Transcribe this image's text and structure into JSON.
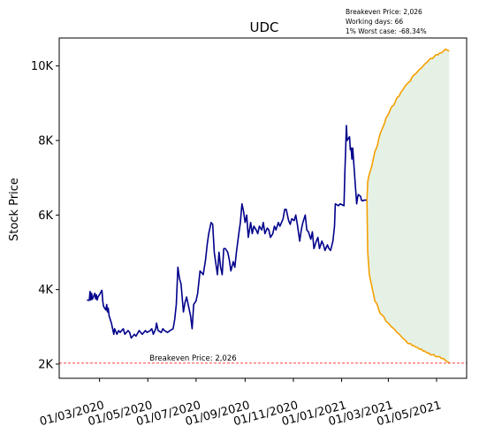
{
  "chart_data": {
    "type": "line",
    "title": "UDC",
    "xlabel": "",
    "ylabel": "Stock Price",
    "info_lines": [
      "Breakeven Price: 2,026",
      "Working days: 66",
      "1% Worst case: -68.34%"
    ],
    "breakeven": {
      "value": 2026,
      "label": "Breakeven Price: 2,026",
      "color": "#ff0000"
    },
    "xlim": [
      "2020-01-10",
      "2021-06-08"
    ],
    "ylim": [
      1620,
      10750
    ],
    "x_ticks": [
      {
        "date": "2020-03-01",
        "label": "01/03/2020"
      },
      {
        "date": "2020-05-01",
        "label": "01/05/2020"
      },
      {
        "date": "2020-07-01",
        "label": "01/07/2020"
      },
      {
        "date": "2020-09-01",
        "label": "01/09/2020"
      },
      {
        "date": "2020-11-01",
        "label": "01/11/2020"
      },
      {
        "date": "2021-01-01",
        "label": "01/01/2021"
      },
      {
        "date": "2021-03-01",
        "label": "01/03/2021"
      },
      {
        "date": "2021-05-01",
        "label": "01/05/2021"
      }
    ],
    "y_ticks": [
      {
        "value": 2000,
        "label": "2K"
      },
      {
        "value": 4000,
        "label": "4K"
      },
      {
        "value": 6000,
        "label": "6K"
      },
      {
        "value": 8000,
        "label": "8K"
      },
      {
        "value": 10000,
        "label": "10K"
      }
    ],
    "grid": false,
    "series": [
      {
        "color": "#00008b",
        "points": [
          [
            "2020-02-14",
            3720
          ],
          [
            "2020-02-17",
            3710
          ],
          [
            "2020-02-18",
            3950
          ],
          [
            "2020-02-19",
            3720
          ],
          [
            "2020-02-20",
            3900
          ],
          [
            "2020-02-21",
            3740
          ],
          [
            "2020-02-24",
            3900
          ],
          [
            "2020-02-25",
            3750
          ],
          [
            "2020-02-26",
            3860
          ],
          [
            "2020-02-27",
            3720
          ],
          [
            "2020-02-28",
            3800
          ],
          [
            "2020-03-02",
            3900
          ],
          [
            "2020-03-03",
            3950
          ],
          [
            "2020-03-04",
            3980
          ],
          [
            "2020-03-05",
            3700
          ],
          [
            "2020-03-06",
            3550
          ],
          [
            "2020-03-09",
            3450
          ],
          [
            "2020-03-10",
            3600
          ],
          [
            "2020-03-11",
            3400
          ],
          [
            "2020-03-12",
            3500
          ],
          [
            "2020-03-13",
            3300
          ],
          [
            "2020-03-16",
            3100
          ],
          [
            "2020-03-17",
            3000
          ],
          [
            "2020-03-18",
            2900
          ],
          [
            "2020-03-19",
            2800
          ],
          [
            "2020-03-20",
            2950
          ],
          [
            "2020-03-23",
            2800
          ],
          [
            "2020-03-25",
            2900
          ],
          [
            "2020-03-27",
            2850
          ],
          [
            "2020-03-31",
            2950
          ],
          [
            "2020-04-02",
            2800
          ],
          [
            "2020-04-06",
            2900
          ],
          [
            "2020-04-08",
            2850
          ],
          [
            "2020-04-10",
            2700
          ],
          [
            "2020-04-14",
            2800
          ],
          [
            "2020-04-16",
            2750
          ],
          [
            "2020-04-20",
            2900
          ],
          [
            "2020-04-22",
            2850
          ],
          [
            "2020-04-24",
            2800
          ],
          [
            "2020-04-28",
            2900
          ],
          [
            "2020-04-30",
            2850
          ],
          [
            "2020-05-04",
            2900
          ],
          [
            "2020-05-06",
            2950
          ],
          [
            "2020-05-08",
            2800
          ],
          [
            "2020-05-11",
            2950
          ],
          [
            "2020-05-12",
            3100
          ],
          [
            "2020-05-14",
            2900
          ],
          [
            "2020-05-18",
            2850
          ],
          [
            "2020-05-20",
            2950
          ],
          [
            "2020-05-22",
            2900
          ],
          [
            "2020-05-26",
            2850
          ],
          [
            "2020-05-29",
            2900
          ],
          [
            "2020-06-02",
            2950
          ],
          [
            "2020-06-04",
            3200
          ],
          [
            "2020-06-06",
            3600
          ],
          [
            "2020-06-08",
            4600
          ],
          [
            "2020-06-10",
            4300
          ],
          [
            "2020-06-12",
            4150
          ],
          [
            "2020-06-15",
            3400
          ],
          [
            "2020-06-17",
            3650
          ],
          [
            "2020-06-19",
            3800
          ],
          [
            "2020-06-22",
            3500
          ],
          [
            "2020-06-24",
            3300
          ],
          [
            "2020-06-26",
            2950
          ],
          [
            "2020-06-28",
            3600
          ],
          [
            "2020-07-01",
            3700
          ],
          [
            "2020-07-03",
            3900
          ],
          [
            "2020-07-06",
            4500
          ],
          [
            "2020-07-08",
            4450
          ],
          [
            "2020-07-10",
            4400
          ],
          [
            "2020-07-13",
            4800
          ],
          [
            "2020-07-15",
            5200
          ],
          [
            "2020-07-17",
            5500
          ],
          [
            "2020-07-20",
            5800
          ],
          [
            "2020-07-22",
            5750
          ],
          [
            "2020-07-24",
            5000
          ],
          [
            "2020-07-26",
            4700
          ],
          [
            "2020-07-28",
            4400
          ],
          [
            "2020-07-30",
            5000
          ],
          [
            "2020-08-01",
            4600
          ],
          [
            "2020-08-03",
            4400
          ],
          [
            "2020-08-05",
            5100
          ],
          [
            "2020-08-07",
            5100
          ],
          [
            "2020-08-10",
            5000
          ],
          [
            "2020-08-12",
            4800
          ],
          [
            "2020-08-14",
            4500
          ],
          [
            "2020-08-17",
            4750
          ],
          [
            "2020-08-19",
            4600
          ],
          [
            "2020-08-21",
            5000
          ],
          [
            "2020-08-24",
            5500
          ],
          [
            "2020-08-26",
            5800
          ],
          [
            "2020-08-28",
            6300
          ],
          [
            "2020-08-30",
            6100
          ],
          [
            "2020-09-01",
            5800
          ],
          [
            "2020-09-03",
            6000
          ],
          [
            "2020-09-05",
            5400
          ],
          [
            "2020-09-08",
            5800
          ],
          [
            "2020-09-10",
            5500
          ],
          [
            "2020-09-12",
            5700
          ],
          [
            "2020-09-15",
            5600
          ],
          [
            "2020-09-17",
            5500
          ],
          [
            "2020-09-19",
            5700
          ],
          [
            "2020-09-22",
            5600
          ],
          [
            "2020-09-24",
            5800
          ],
          [
            "2020-09-26",
            5500
          ],
          [
            "2020-09-29",
            5650
          ],
          [
            "2020-10-01",
            5600
          ],
          [
            "2020-10-03",
            5400
          ],
          [
            "2020-10-06",
            5500
          ],
          [
            "2020-10-08",
            5700
          ],
          [
            "2020-10-10",
            5600
          ],
          [
            "2020-10-13",
            5800
          ],
          [
            "2020-10-15",
            5700
          ],
          [
            "2020-10-17",
            5800
          ],
          [
            "2020-10-19",
            5900
          ],
          [
            "2020-10-21",
            6150
          ],
          [
            "2020-10-23",
            6150
          ],
          [
            "2020-10-26",
            5850
          ],
          [
            "2020-10-28",
            5750
          ],
          [
            "2020-10-30",
            5900
          ],
          [
            "2020-11-02",
            5850
          ],
          [
            "2020-11-04",
            6000
          ],
          [
            "2020-11-06",
            5750
          ],
          [
            "2020-11-09",
            5300
          ],
          [
            "2020-11-11",
            5600
          ],
          [
            "2020-11-13",
            5800
          ],
          [
            "2020-11-16",
            6000
          ],
          [
            "2020-11-18",
            5600
          ],
          [
            "2020-11-20",
            5550
          ],
          [
            "2020-11-23",
            5350
          ],
          [
            "2020-11-25",
            5550
          ],
          [
            "2020-11-27",
            5100
          ],
          [
            "2020-11-30",
            5300
          ],
          [
            "2020-12-02",
            5400
          ],
          [
            "2020-12-04",
            5100
          ],
          [
            "2020-12-07",
            5300
          ],
          [
            "2020-12-09",
            5200
          ],
          [
            "2020-12-11",
            5050
          ],
          [
            "2020-12-14",
            5200
          ],
          [
            "2020-12-16",
            5100
          ],
          [
            "2020-12-18",
            5050
          ],
          [
            "2020-12-21",
            5300
          ],
          [
            "2020-12-23",
            5700
          ],
          [
            "2020-12-24",
            6300
          ],
          [
            "2020-12-28",
            6250
          ],
          [
            "2020-12-30",
            6300
          ],
          [
            "2021-01-04",
            6250
          ],
          [
            "2021-01-05",
            7100
          ],
          [
            "2021-01-06",
            7700
          ],
          [
            "2021-01-07",
            8400
          ],
          [
            "2021-01-08",
            8000
          ],
          [
            "2021-01-11",
            8100
          ],
          [
            "2021-01-12",
            7750
          ],
          [
            "2021-01-13",
            7800
          ],
          [
            "2021-01-14",
            7500
          ],
          [
            "2021-01-15",
            7800
          ],
          [
            "2021-01-18",
            6900
          ],
          [
            "2021-01-19",
            6600
          ],
          [
            "2021-01-20",
            6300
          ],
          [
            "2021-01-21",
            6450
          ],
          [
            "2021-01-22",
            6550
          ],
          [
            "2021-01-25",
            6500
          ],
          [
            "2021-01-26",
            6400
          ],
          [
            "2021-01-28",
            6380
          ],
          [
            "2021-01-29",
            6400
          ],
          [
            "2021-02-01",
            6400
          ],
          [
            "2021-02-02",
            6400
          ]
        ]
      },
      {
        "color": "#f5a000",
        "points": [
          [
            "2021-02-02",
            6400
          ],
          [
            "2021-02-03",
            6900
          ],
          [
            "2021-02-05",
            7100
          ],
          [
            "2021-02-08",
            7300
          ],
          [
            "2021-02-10",
            7500
          ],
          [
            "2021-02-12",
            7700
          ],
          [
            "2021-02-15",
            7850
          ],
          [
            "2021-02-17",
            8050
          ],
          [
            "2021-02-19",
            8200
          ],
          [
            "2021-02-22",
            8350
          ],
          [
            "2021-02-24",
            8450
          ],
          [
            "2021-02-26",
            8600
          ],
          [
            "2021-03-01",
            8700
          ],
          [
            "2021-03-03",
            8800
          ],
          [
            "2021-03-05",
            8900
          ],
          [
            "2021-03-08",
            8950
          ],
          [
            "2021-03-10",
            9050
          ],
          [
            "2021-03-12",
            9150
          ],
          [
            "2021-03-15",
            9200
          ],
          [
            "2021-03-17",
            9300
          ],
          [
            "2021-03-19",
            9350
          ],
          [
            "2021-03-22",
            9450
          ],
          [
            "2021-03-24",
            9500
          ],
          [
            "2021-03-26",
            9550
          ],
          [
            "2021-03-29",
            9600
          ],
          [
            "2021-03-31",
            9700
          ],
          [
            "2021-04-02",
            9750
          ],
          [
            "2021-04-05",
            9800
          ],
          [
            "2021-04-07",
            9850
          ],
          [
            "2021-04-09",
            9900
          ],
          [
            "2021-04-12",
            9950
          ],
          [
            "2021-04-14",
            10000
          ],
          [
            "2021-04-16",
            10050
          ],
          [
            "2021-04-19",
            10100
          ],
          [
            "2021-04-21",
            10150
          ],
          [
            "2021-04-23",
            10200
          ],
          [
            "2021-04-26",
            10200
          ],
          [
            "2021-04-28",
            10250
          ],
          [
            "2021-04-30",
            10300
          ],
          [
            "2021-05-03",
            10300
          ],
          [
            "2021-05-05",
            10350
          ],
          [
            "2021-05-07",
            10350
          ],
          [
            "2021-05-10",
            10400
          ],
          [
            "2021-05-12",
            10450
          ],
          [
            "2021-05-17",
            10400
          ]
        ]
      },
      {
        "color": "#f5a000",
        "points": [
          [
            "2021-02-02",
            6400
          ],
          [
            "2021-02-03",
            5000
          ],
          [
            "2021-02-05",
            4400
          ],
          [
            "2021-02-08",
            4100
          ],
          [
            "2021-02-10",
            3900
          ],
          [
            "2021-02-12",
            3700
          ],
          [
            "2021-02-15",
            3600
          ],
          [
            "2021-02-17",
            3450
          ],
          [
            "2021-02-19",
            3350
          ],
          [
            "2021-02-22",
            3300
          ],
          [
            "2021-02-24",
            3250
          ],
          [
            "2021-02-26",
            3150
          ],
          [
            "2021-03-01",
            3100
          ],
          [
            "2021-03-03",
            3050
          ],
          [
            "2021-03-05",
            3000
          ],
          [
            "2021-03-08",
            2950
          ],
          [
            "2021-03-10",
            2900
          ],
          [
            "2021-03-12",
            2850
          ],
          [
            "2021-03-15",
            2800
          ],
          [
            "2021-03-17",
            2750
          ],
          [
            "2021-03-19",
            2700
          ],
          [
            "2021-03-22",
            2650
          ],
          [
            "2021-03-24",
            2600
          ],
          [
            "2021-03-26",
            2550
          ],
          [
            "2021-03-29",
            2550
          ],
          [
            "2021-03-31",
            2500
          ],
          [
            "2021-04-02",
            2500
          ],
          [
            "2021-04-05",
            2450
          ],
          [
            "2021-04-07",
            2450
          ],
          [
            "2021-04-09",
            2400
          ],
          [
            "2021-04-12",
            2400
          ],
          [
            "2021-04-14",
            2350
          ],
          [
            "2021-04-16",
            2350
          ],
          [
            "2021-04-19",
            2300
          ],
          [
            "2021-04-21",
            2300
          ],
          [
            "2021-04-23",
            2250
          ],
          [
            "2021-04-26",
            2250
          ],
          [
            "2021-04-28",
            2250
          ],
          [
            "2021-04-30",
            2200
          ],
          [
            "2021-05-03",
            2200
          ],
          [
            "2021-05-05",
            2200
          ],
          [
            "2021-05-07",
            2150
          ],
          [
            "2021-05-10",
            2150
          ],
          [
            "2021-05-12",
            2100
          ],
          [
            "2021-05-17",
            2030
          ]
        ]
      }
    ],
    "band": {
      "color": "#2e8b2e",
      "opacity": 0.12,
      "between_series": [
        1,
        2
      ]
    }
  }
}
